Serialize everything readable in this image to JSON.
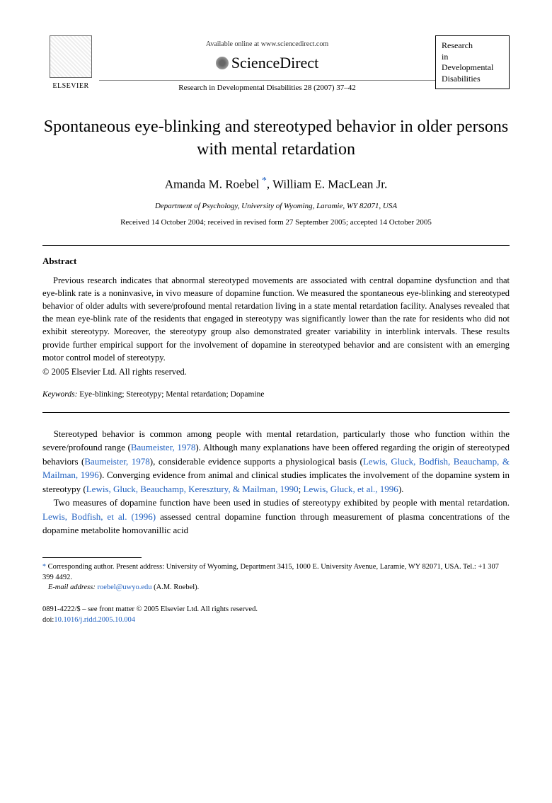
{
  "header": {
    "elsevier_label": "ELSEVIER",
    "available_online": "Available online at www.sciencedirect.com",
    "sciencedirect": "ScienceDirect",
    "journal_ref": "Research in Developmental Disabilities 28 (2007) 37–42",
    "journal_box_l1": "Research",
    "journal_box_l2": "in",
    "journal_box_l3": "Developmental",
    "journal_box_l4": "Disabilities"
  },
  "title": "Spontaneous eye-blinking and stereotyped behavior in older persons with mental retardation",
  "authors": {
    "a1": "Amanda M. Roebel",
    "a2": "William E. MacLean Jr."
  },
  "affiliation": "Department of Psychology, University of Wyoming, Laramie, WY 82071, USA",
  "dates": "Received 14 October 2004; received in revised form 27 September 2005; accepted 14 October 2005",
  "abstract": {
    "heading": "Abstract",
    "text": "Previous research indicates that abnormal stereotyped movements are associated with central dopamine dysfunction and that eye-blink rate is a noninvasive, in vivo measure of dopamine function. We measured the spontaneous eye-blinking and stereotyped behavior of older adults with severe/profound mental retardation living in a state mental retardation facility. Analyses revealed that the mean eye-blink rate of the residents that engaged in stereotypy was significantly lower than the rate for residents who did not exhibit stereotypy. Moreover, the stereotypy group also demonstrated greater variability in interblink intervals. These results provide further empirical support for the involvement of dopamine in stereotyped behavior and are consistent with an emerging motor control model of stereotypy.",
    "copyright": "© 2005 Elsevier Ltd. All rights reserved."
  },
  "keywords": {
    "label": "Keywords:",
    "text": "Eye-blinking; Stereotypy; Mental retardation; Dopamine"
  },
  "body": {
    "p1_a": "Stereotyped behavior is common among people with mental retardation, particularly those who function within the severe/profound range (",
    "p1_c1": "Baumeister, 1978",
    "p1_b": "). Although many explanations have been offered regarding the origin of stereotyped behaviors (",
    "p1_c2": "Baumeister, 1978",
    "p1_c": "), considerable evidence supports a physiological basis (",
    "p1_c3": "Lewis, Gluck, Bodfish, Beauchamp, & Mailman, 1996",
    "p1_d": "). Converging evidence from animal and clinical studies implicates the involvement of the dopamine system in stereotypy (",
    "p1_c4": "Lewis, Gluck, Beauchamp, Keresztury, & Mailman, 1990",
    "p1_sep": "; ",
    "p1_c5": "Lewis, Gluck, et al., 1996",
    "p1_e": ").",
    "p2_a": "Two measures of dopamine function have been used in studies of stereotypy exhibited by people with mental retardation. ",
    "p2_c1": "Lewis, Bodfish, et al. (1996)",
    "p2_b": " assessed central dopamine function through measurement of plasma concentrations of the dopamine metabolite homovanillic acid"
  },
  "footnote": {
    "corr": "Corresponding author. Present address: University of Wyoming, Department 3415, 1000 E. University Avenue, Laramie, WY 82071, USA. Tel.: +1 307 399 4492.",
    "email_label": "E-mail address:",
    "email": "roebel@uwyo.edu",
    "email_suffix": "(A.M. Roebel)."
  },
  "bottom": {
    "issn": "0891-4222/$ – see front matter © 2005 Elsevier Ltd. All rights reserved.",
    "doi_label": "doi:",
    "doi": "10.1016/j.ridd.2005.10.004"
  },
  "colors": {
    "link": "#2060c0",
    "text": "#000000",
    "background": "#ffffff"
  }
}
